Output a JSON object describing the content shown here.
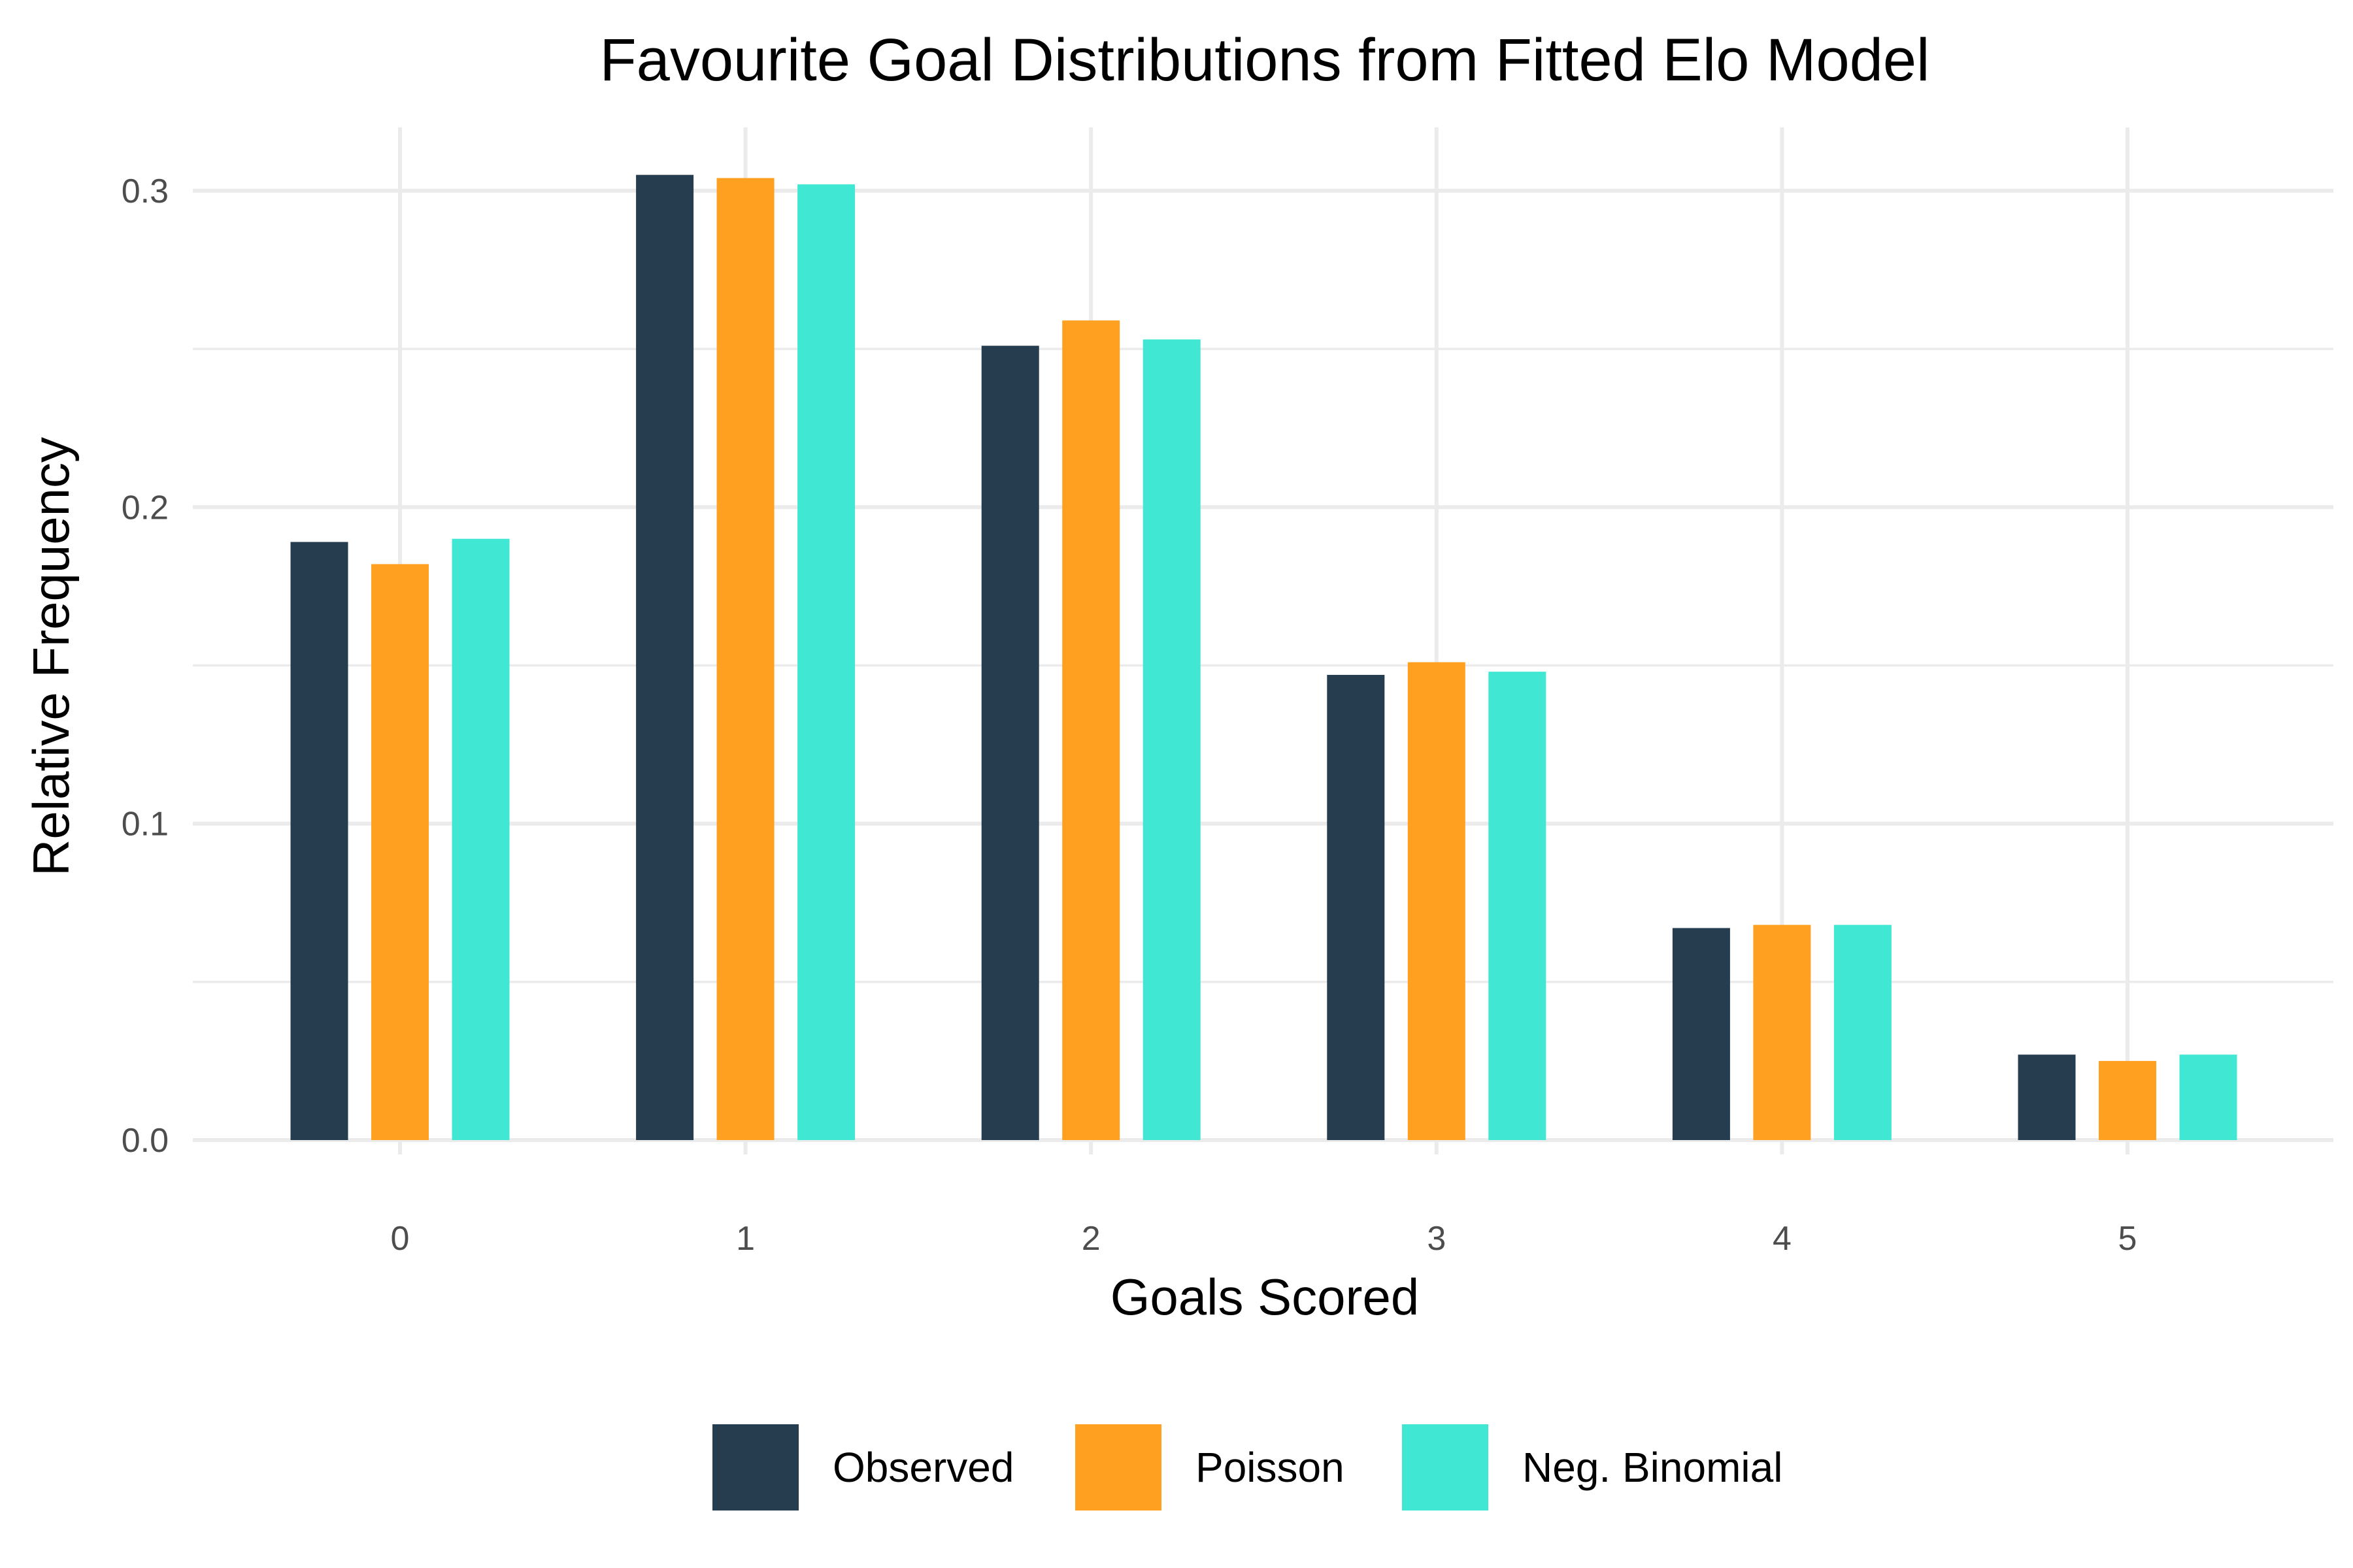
{
  "chart_data": {
    "type": "bar",
    "title": "Favourite Goal Distributions from Fitted Elo Model",
    "xlabel": "Goals Scored",
    "ylabel": "Relative Frequency",
    "categories": [
      "0",
      "1",
      "2",
      "3",
      "4",
      "5"
    ],
    "series": [
      {
        "name": "Observed",
        "color": "#253d4e",
        "values": [
          0.189,
          0.305,
          0.251,
          0.147,
          0.067,
          0.027
        ]
      },
      {
        "name": "Poisson",
        "color": "#ffa020",
        "values": [
          0.182,
          0.304,
          0.259,
          0.151,
          0.068,
          0.025
        ]
      },
      {
        "name": "Neg. Binomial",
        "color": "#40e8d4",
        "values": [
          0.19,
          0.302,
          0.253,
          0.148,
          0.068,
          0.027
        ]
      }
    ],
    "ylim": [
      0,
      0.32
    ],
    "yticks": [
      0.0,
      0.1,
      0.2,
      0.3
    ],
    "ytick_labels": [
      "0.0",
      "0.1",
      "0.2",
      "0.3"
    ],
    "grid": true,
    "legend_position": "bottom"
  }
}
